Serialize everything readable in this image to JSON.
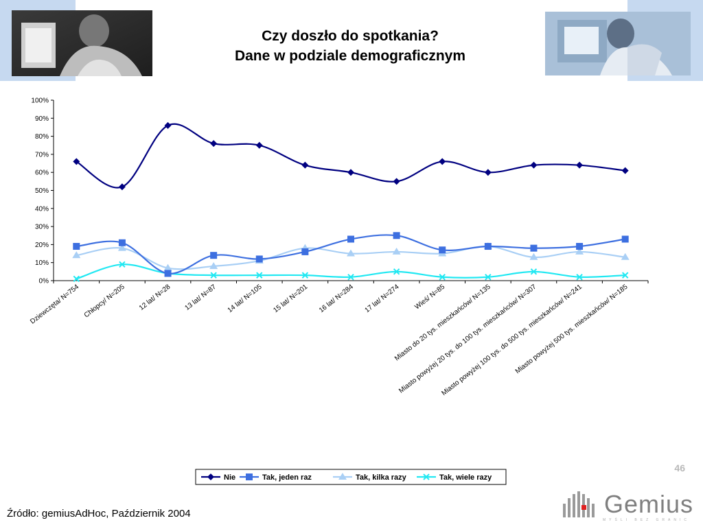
{
  "title": {
    "line1": "Czy doszło do spotkania?",
    "line2": "Dane w podziale demograficznym"
  },
  "page_number": "46",
  "source": "Źródło: gemiusAdHoc, Październik 2004",
  "logo": {
    "text": "Gemius",
    "tagline": "MYŚLI BEZ GRANIC"
  },
  "colors": {
    "nie": "#000080",
    "jeden": "#3d6fe0",
    "kilka": "#a9cff5",
    "wiele": "#22e8f2",
    "corner": "#c6d9f0"
  },
  "chart_data": {
    "type": "line",
    "categories": [
      "Dziewczęta/ N=754",
      "Chłopcy/ N=205",
      "12 lat/ N=28",
      "13 lat/ N=87",
      "14 lat/ N=105",
      "15 lat/ N=201",
      "16 lat/ N=284",
      "17 lat/ N=274",
      "Wieś/ N=85",
      "Miasto do 20 tys. mieszkańców/ N=135",
      "Miasto powyżej 20 tys. do 100 tys. mieszkańców/ N=307",
      "Miasto powyżej 100 tys. do 500 tys. mieszkańców/ N=241",
      "Miasto powyżej 500 tys. mieszkańców/ N=185"
    ],
    "series": [
      {
        "name": "Nie",
        "marker": "diamond",
        "values": [
          66,
          52,
          86,
          76,
          75,
          64,
          60,
          55,
          66,
          60,
          64,
          64,
          61
        ]
      },
      {
        "name": "Tak, jeden raz",
        "marker": "square",
        "values": [
          19,
          21,
          4,
          14,
          12,
          16,
          23,
          25,
          17,
          19,
          18,
          19,
          23
        ]
      },
      {
        "name": "Tak, kilka razy",
        "marker": "triangle",
        "values": [
          14,
          18,
          7,
          8,
          11,
          18,
          15,
          16,
          15,
          19,
          13,
          16,
          13
        ]
      },
      {
        "name": "Tak, wiele razy",
        "marker": "x",
        "values": [
          1,
          9,
          4,
          3,
          3,
          3,
          2,
          5,
          2,
          2,
          5,
          2,
          3
        ]
      }
    ],
    "ylim": [
      0,
      100
    ],
    "yticks": [
      "0%",
      "10%",
      "20%",
      "30%",
      "40%",
      "50%",
      "60%",
      "70%",
      "80%",
      "90%",
      "100%"
    ],
    "grid": false,
    "legend": "bottom"
  }
}
